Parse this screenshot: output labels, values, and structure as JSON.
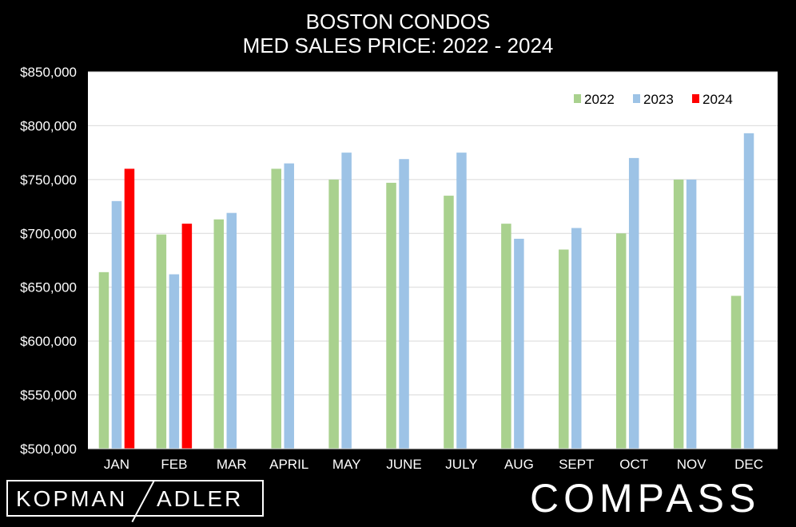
{
  "chart_data": {
    "type": "bar",
    "title": [
      "BOSTON CONDOS",
      "MED SALES PRICE: 2022 - 2024"
    ],
    "categories": [
      "JAN",
      "FEB",
      "MAR",
      "APRIL",
      "MAY",
      "JUNE",
      "JULY",
      "AUG",
      "SEPT",
      "OCT",
      "NOV",
      "DEC"
    ],
    "series": [
      {
        "name": "2022",
        "color": "#a9d18e",
        "values": [
          664000,
          699000,
          713000,
          760000,
          750000,
          747000,
          735000,
          709000,
          685000,
          700000,
          750000,
          642000
        ]
      },
      {
        "name": "2023",
        "color": "#9dc3e6",
        "values": [
          730000,
          662000,
          719000,
          765000,
          775000,
          769000,
          775000,
          695000,
          705000,
          770000,
          750000,
          793000
        ]
      },
      {
        "name": "2024",
        "color": "#ff0000",
        "values": [
          760000,
          709000,
          null,
          null,
          null,
          null,
          null,
          null,
          null,
          null,
          null,
          null
        ]
      }
    ],
    "ylim": [
      500000,
      850000
    ],
    "yticks": [
      "$500,000",
      "$550,000",
      "$600,000",
      "$650,000",
      "$700,000",
      "$750,000",
      "$800,000",
      "$850,000"
    ],
    "ytick_values": [
      500000,
      550000,
      600000,
      650000,
      700000,
      750000,
      800000,
      850000
    ],
    "grid": true,
    "legend_position": "top-right",
    "xlabel": "",
    "ylabel": ""
  },
  "branding": {
    "left_part1": "KOPMAN",
    "left_part2": "ADLER",
    "right": "COMPASS"
  }
}
